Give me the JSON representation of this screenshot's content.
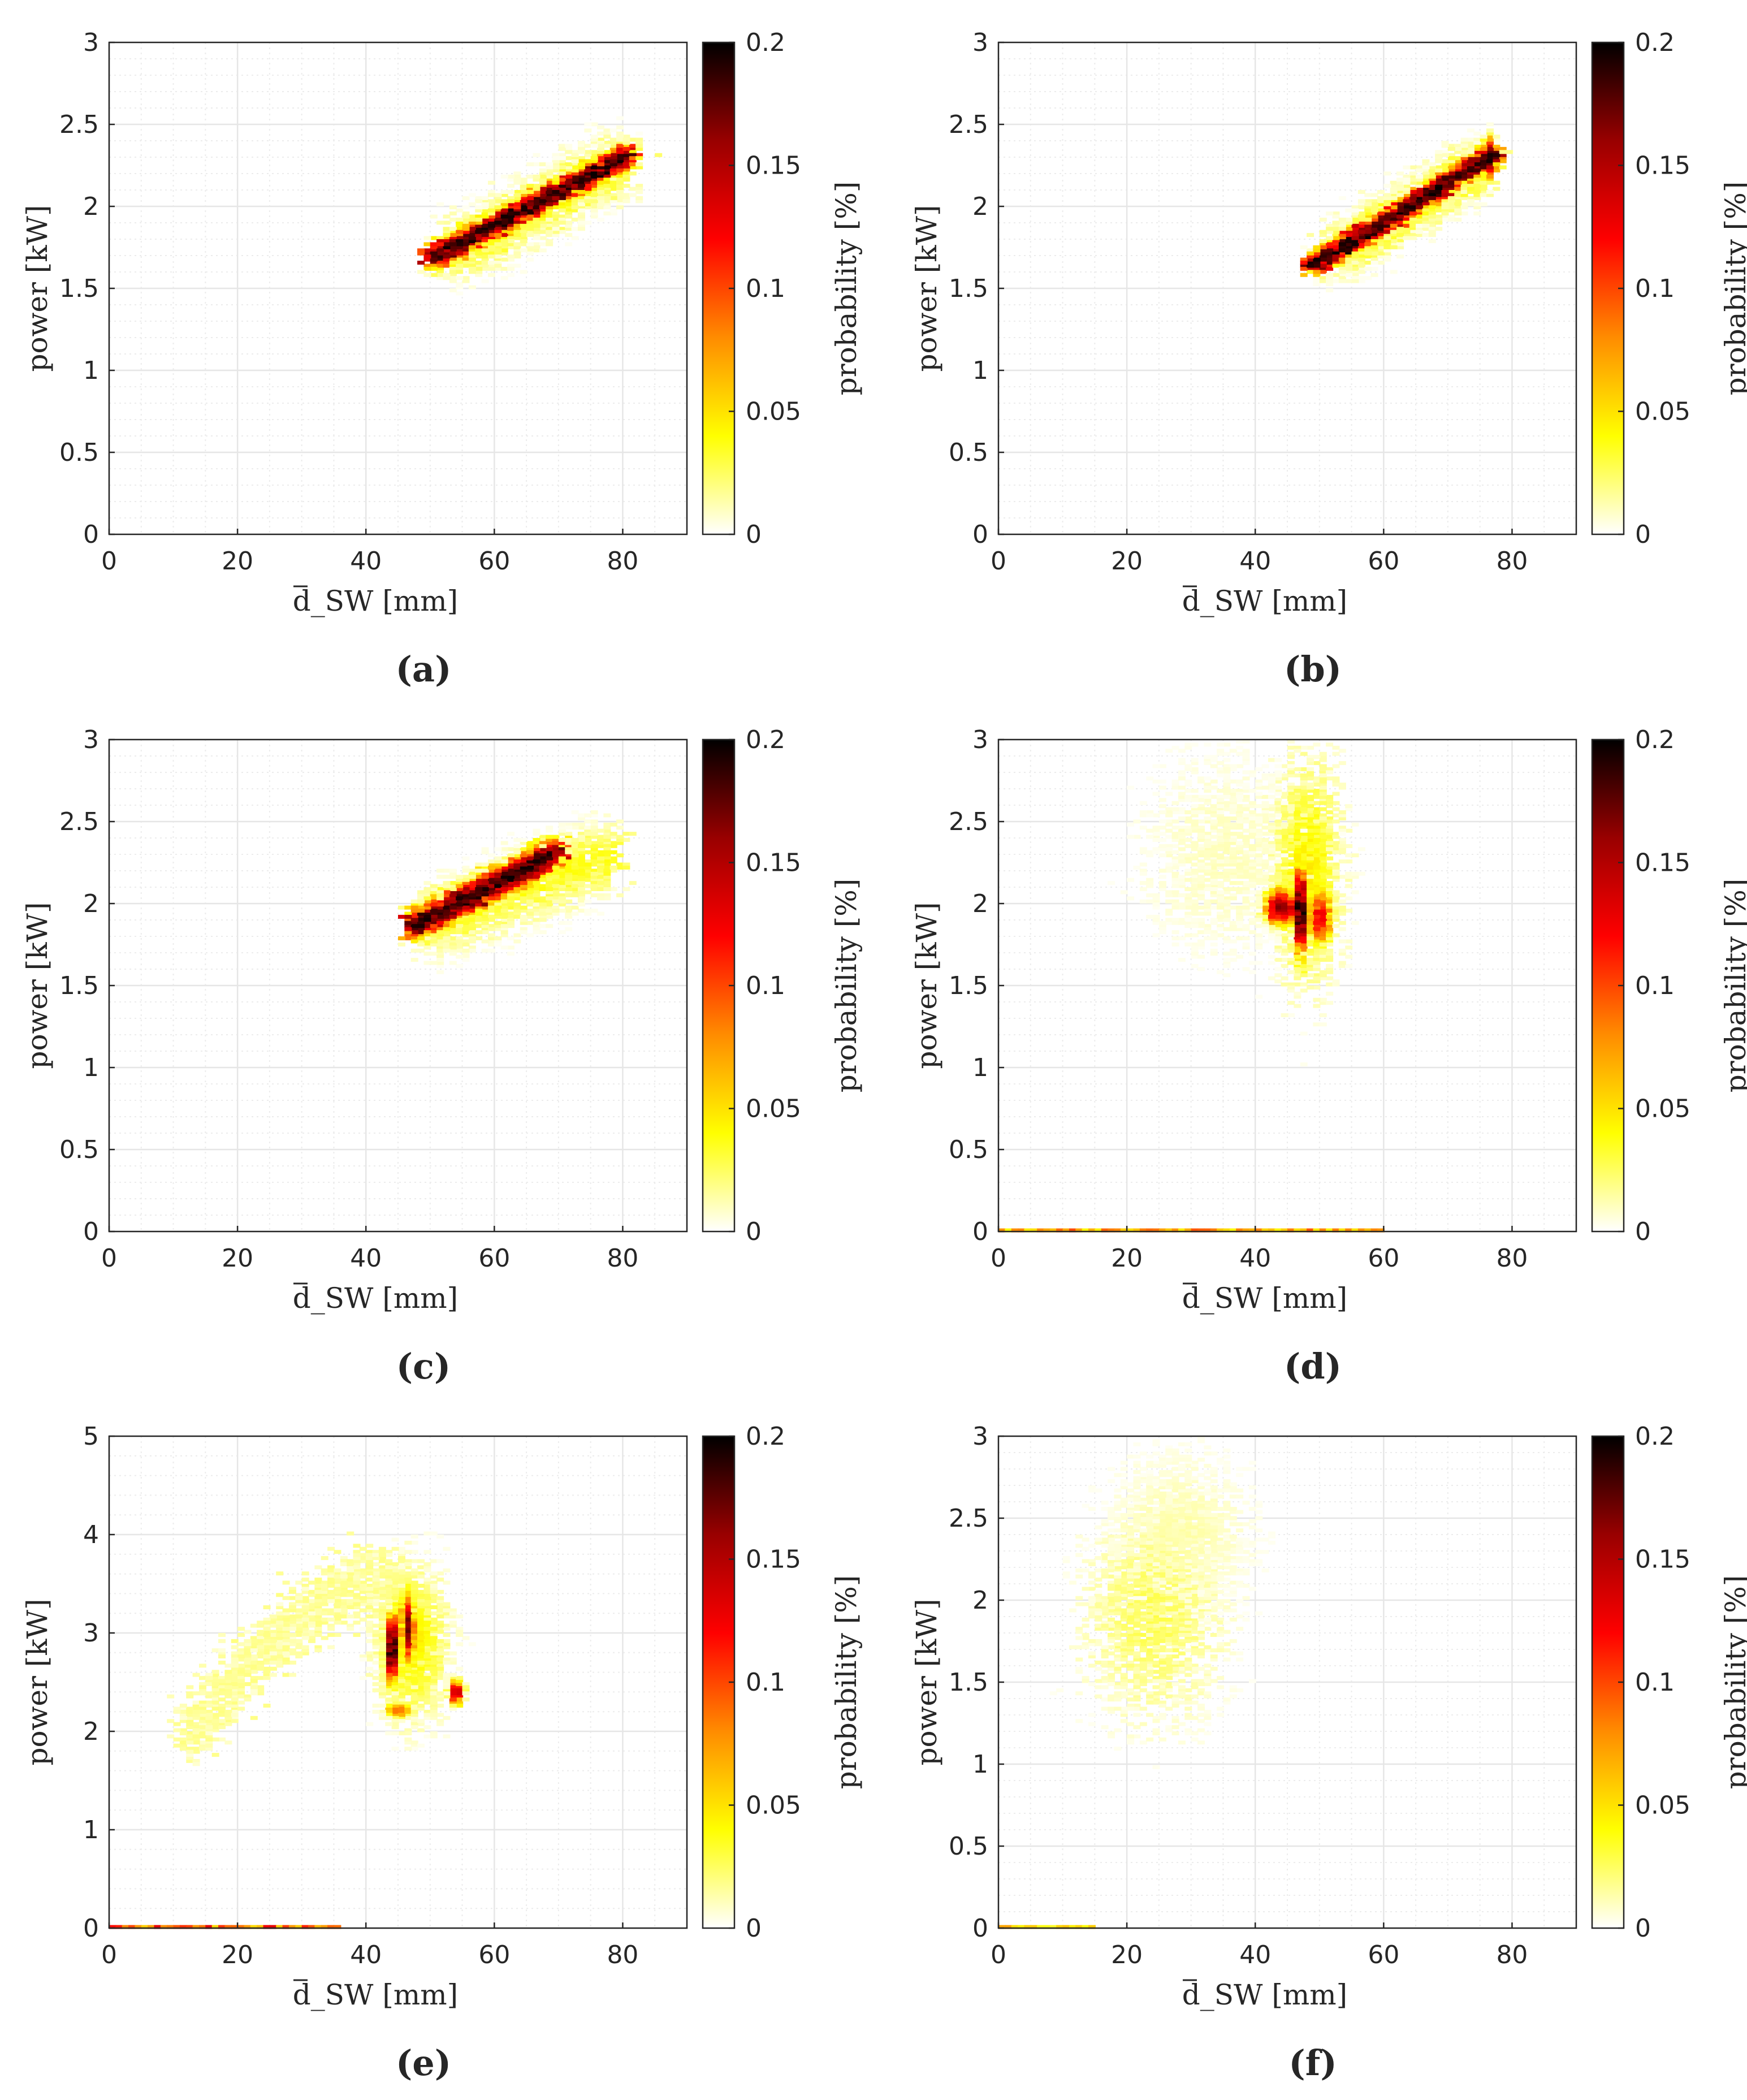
{
  "figure": {
    "colorbar_label": "probability [%]",
    "colorbar_ticks": [
      "0",
      "0.05",
      "0.1",
      "0.15",
      "0.2"
    ],
    "colorbar_range": [
      0,
      0.2
    ],
    "colormap": [
      "#ffffff",
      "#ffff00",
      "#ff8c00",
      "#ff0000",
      "#990000",
      "#000000"
    ],
    "grid_color": "#e6e6e6",
    "axis_color": "#262626"
  },
  "chart_data": [
    {
      "type": "heatmap",
      "panel": "(a)",
      "xlabel": "d_SW [mm]",
      "ylabel": "power [kW]",
      "xlim": [
        0,
        90
      ],
      "ylim": [
        0,
        3
      ],
      "xticks": [
        0,
        20,
        40,
        60,
        80
      ],
      "yticks": [
        0,
        0.5,
        1,
        1.5,
        2,
        2.5,
        3
      ],
      "clusters": [
        {
          "kind": "band",
          "x": [
            50,
            81
          ],
          "y": [
            1.68,
            2.32
          ],
          "width": 0.13,
          "peak": 0.2
        },
        {
          "kind": "halo",
          "x": [
            54,
            80
          ],
          "y": [
            1.72,
            2.28
          ],
          "width": 0.35,
          "peak": 0.04
        }
      ]
    },
    {
      "type": "heatmap",
      "panel": "(b)",
      "xlabel": "d_SW [mm]",
      "ylabel": "power [kW]",
      "xlim": [
        0,
        90
      ],
      "ylim": [
        0,
        3
      ],
      "xticks": [
        0,
        20,
        40,
        60,
        80
      ],
      "yticks": [
        0,
        0.5,
        1,
        1.5,
        2,
        2.5,
        3
      ],
      "clusters": [
        {
          "kind": "band",
          "x": [
            49,
            77
          ],
          "y": [
            1.64,
            2.32
          ],
          "width": 0.11,
          "peak": 0.2
        },
        {
          "kind": "halo",
          "x": [
            52,
            75
          ],
          "y": [
            1.7,
            2.25
          ],
          "width": 0.3,
          "peak": 0.04
        },
        {
          "kind": "blob",
          "cx": 76.5,
          "cy": 2.3,
          "sx": 0.5,
          "sy": 0.08,
          "peak": 0.2
        }
      ]
    },
    {
      "type": "heatmap",
      "panel": "(c)",
      "xlabel": "d_SW [mm]",
      "ylabel": "power [kW]",
      "xlim": [
        0,
        90
      ],
      "ylim": [
        0,
        3
      ],
      "xticks": [
        0,
        20,
        40,
        60,
        80
      ],
      "yticks": [
        0,
        0.5,
        1,
        1.5,
        2,
        2.5,
        3
      ],
      "clusters": [
        {
          "kind": "band",
          "x": [
            47,
            70
          ],
          "y": [
            1.86,
            2.32
          ],
          "width": 0.17,
          "peak": 0.2
        },
        {
          "kind": "halo",
          "x": [
            50,
            78
          ],
          "y": [
            1.88,
            2.3
          ],
          "width": 0.4,
          "peak": 0.04
        }
      ]
    },
    {
      "type": "heatmap",
      "panel": "(d)",
      "xlabel": "d_SW [mm]",
      "ylabel": "power [kW]",
      "xlim": [
        0,
        90
      ],
      "ylim": [
        0,
        3
      ],
      "xticks": [
        0,
        20,
        40,
        60,
        80
      ],
      "yticks": [
        0,
        0.5,
        1,
        1.5,
        2,
        2.5,
        3
      ],
      "clusters": [
        {
          "kind": "blob",
          "cx": 47,
          "cy": 1.95,
          "sx": 0.5,
          "sy": 0.2,
          "peak": 0.2
        },
        {
          "kind": "blob",
          "cx": 44,
          "cy": 1.98,
          "sx": 1.8,
          "sy": 0.08,
          "peak": 0.17
        },
        {
          "kind": "blob",
          "cx": 50,
          "cy": 1.92,
          "sx": 1.2,
          "sy": 0.12,
          "peak": 0.13
        },
        {
          "kind": "halo2d",
          "cx": 48,
          "cy": 2.2,
          "sx": 4,
          "sy": 0.5,
          "peak": 0.05
        },
        {
          "kind": "halo2d",
          "cx": 35,
          "cy": 2.3,
          "sx": 10,
          "sy": 0.45,
          "peak": 0.012
        },
        {
          "kind": "floor",
          "x": [
            0,
            60
          ],
          "y": 0.0,
          "peak": 0.1
        }
      ]
    },
    {
      "type": "heatmap",
      "panel": "(e)",
      "xlabel": "d_SW [mm]",
      "ylabel": "power [kW]",
      "xlim": [
        0,
        90
      ],
      "ylim": [
        0,
        5
      ],
      "xticks": [
        0,
        20,
        40,
        60,
        80
      ],
      "yticks": [
        0,
        1,
        2,
        3,
        4,
        5
      ],
      "clusters": [
        {
          "kind": "blob",
          "cx": 44,
          "cy": 2.85,
          "sx": 0.5,
          "sy": 0.25,
          "peak": 0.2
        },
        {
          "kind": "blob",
          "cx": 46.5,
          "cy": 3.05,
          "sx": 0.5,
          "sy": 0.25,
          "peak": 0.18
        },
        {
          "kind": "blob",
          "cx": 54,
          "cy": 2.4,
          "sx": 0.6,
          "sy": 0.08,
          "peak": 0.14
        },
        {
          "kind": "blob",
          "cx": 45,
          "cy": 2.22,
          "sx": 1.2,
          "sy": 0.05,
          "peak": 0.09
        },
        {
          "kind": "halo2d",
          "cx": 47,
          "cy": 2.9,
          "sx": 4,
          "sy": 0.55,
          "peak": 0.05
        },
        {
          "kind": "arc",
          "x": [
            12,
            45
          ],
          "y": [
            1.95,
            3.55
          ],
          "width": 0.25,
          "peak": 0.02
        },
        {
          "kind": "floor",
          "x": [
            0,
            36
          ],
          "y": 0.0,
          "peak": 0.13
        }
      ]
    },
    {
      "type": "heatmap",
      "panel": "(f)",
      "xlabel": "d_SW [mm]",
      "ylabel": "power [kW]",
      "xlim": [
        0,
        90
      ],
      "ylim": [
        0,
        3
      ],
      "xticks": [
        0,
        20,
        40,
        60,
        80
      ],
      "yticks": [
        0,
        0.5,
        1,
        1.5,
        2,
        2.5,
        3
      ],
      "clusters": [
        {
          "kind": "halo2d",
          "cx": 24,
          "cy": 1.9,
          "sx": 8,
          "sy": 0.45,
          "peak": 0.03
        },
        {
          "kind": "halo2d",
          "cx": 28,
          "cy": 2.4,
          "sx": 8,
          "sy": 0.35,
          "peak": 0.015
        },
        {
          "kind": "floor",
          "x": [
            0,
            15
          ],
          "y": 0.0,
          "peak": 0.08
        }
      ]
    }
  ]
}
